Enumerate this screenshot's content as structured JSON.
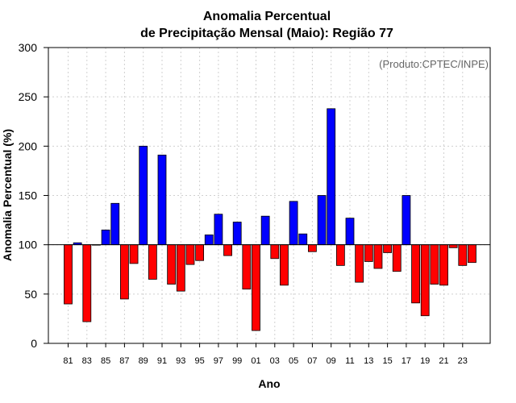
{
  "chart_data": {
    "type": "bar",
    "title_line1": "Anomalia Percentual",
    "title_line2": "de Precipitação Mensal (Maio): Região 77",
    "credit": "(Produto:CPTEC/INPE)",
    "xlabel": "Ano",
    "ylabel": "Anomalia Percentual (%)",
    "ylim": [
      0,
      300
    ],
    "yticks": [
      0,
      50,
      100,
      150,
      200,
      250,
      300
    ],
    "baseline": 100,
    "grid": true,
    "colors": {
      "above": "#0000ff",
      "below": "#ff0000",
      "edge": "#000000"
    },
    "categories": [
      "1981",
      "1982",
      "1983",
      "1984",
      "1985",
      "1986",
      "1987",
      "1988",
      "1989",
      "1990",
      "1991",
      "1992",
      "1993",
      "1994",
      "1995",
      "1996",
      "1997",
      "1998",
      "1999",
      "2000",
      "2001",
      "2002",
      "2003",
      "2004",
      "2005",
      "2006",
      "2007",
      "2008",
      "2009",
      "2010",
      "2011",
      "2012",
      "2013",
      "2014",
      "2015",
      "2016",
      "2017",
      "2018",
      "2019",
      "2020",
      "2021",
      "2022",
      "2023",
      "2024"
    ],
    "xtick_labels": [
      "81",
      "83",
      "85",
      "87",
      "89",
      "91",
      "93",
      "95",
      "97",
      "99",
      "01",
      "03",
      "05",
      "07",
      "09",
      "11",
      "13",
      "15",
      "17",
      "19",
      "21",
      "23"
    ],
    "values": [
      40,
      102,
      22,
      100,
      115,
      142,
      45,
      81,
      200,
      65,
      191,
      60,
      53,
      80,
      84,
      110,
      131,
      89,
      123,
      55,
      13,
      129,
      86,
      59,
      144,
      111,
      93,
      150,
      238,
      79,
      127,
      62,
      83,
      76,
      92,
      73,
      150,
      41,
      28,
      60,
      59,
      97,
      79,
      82
    ]
  }
}
